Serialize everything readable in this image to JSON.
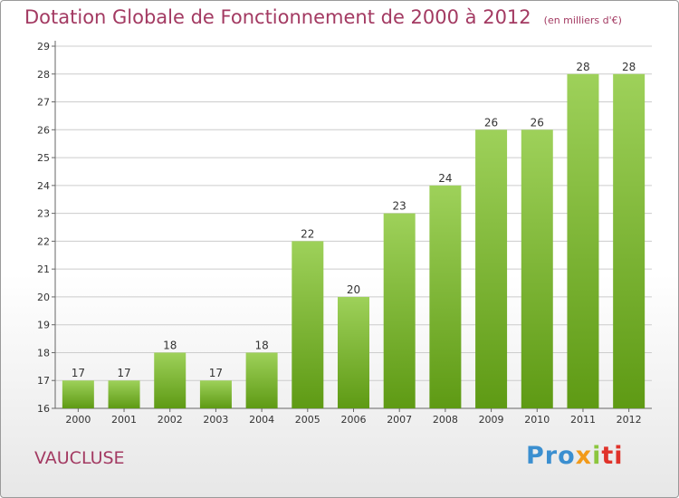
{
  "chart_data": {
    "type": "bar",
    "title": "Dotation Globale de Fonctionnement de 2000 à 2012",
    "subtitle": "(en milliers d'€)",
    "categories": [
      "2000",
      "2001",
      "2002",
      "2003",
      "2004",
      "2005",
      "2006",
      "2007",
      "2008",
      "2009",
      "2010",
      "2011",
      "2012"
    ],
    "values": [
      17,
      17,
      18,
      17,
      18,
      22,
      20,
      23,
      24,
      26,
      26,
      28,
      28
    ],
    "ylim": [
      16,
      29
    ],
    "yticks": [
      16,
      17,
      18,
      19,
      20,
      21,
      22,
      23,
      24,
      25,
      26,
      27,
      28,
      29
    ],
    "grid": true,
    "legend": "none",
    "bar_color_top": "#9ed15a",
    "bar_color_bottom": "#5e9a14"
  },
  "region_label": "VAUCLUSE",
  "logo": {
    "text": "Proxiti",
    "parts": [
      "Pro",
      "x",
      "i",
      "ti"
    ]
  },
  "colors": {
    "title": "#a33a62",
    "grid": "#cccccc"
  }
}
